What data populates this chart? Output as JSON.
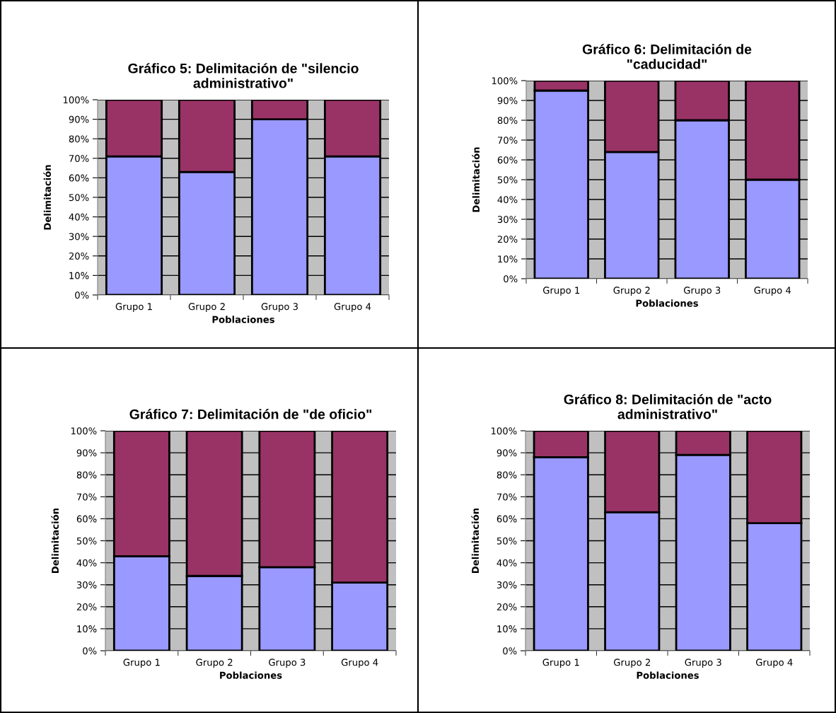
{
  "chart_data": [
    {
      "type": "bar",
      "stacked": true,
      "title": "Gráfico 5: Delimitación de \"silencio\nadministrativo\"",
      "xlabel": "Poblaciones",
      "ylabel": "Delimitación",
      "categories": [
        "Grupo 1",
        "Grupo 2",
        "Grupo 3",
        "Grupo 4"
      ],
      "ylim": [
        0,
        100
      ],
      "yticks": [
        {
          "value": 0,
          "label": "0%"
        },
        {
          "value": 10,
          "label": "10%"
        },
        {
          "value": 20,
          "label": "20%"
        },
        {
          "value": 30,
          "label": "30%"
        },
        {
          "value": 40,
          "label": "40%"
        },
        {
          "value": 50,
          "label": "50%"
        },
        {
          "value": 60,
          "label": "60%"
        },
        {
          "value": 70,
          "label": "70%"
        },
        {
          "value": 80,
          "label": "80%"
        },
        {
          "value": 90,
          "label": "90%"
        },
        {
          "value": 100,
          "label": "100%"
        }
      ],
      "grid": "y",
      "series": [
        {
          "color": "#9999ff",
          "values": [
            71,
            63,
            90,
            71
          ]
        },
        {
          "color": "#993366",
          "values": [
            29,
            37,
            10,
            29
          ]
        }
      ]
    },
    {
      "type": "bar",
      "stacked": true,
      "title": "Gráfico 6: Delimitación de\n\"caducidad\"",
      "xlabel": "Poblaciones",
      "ylabel": "Delimitación",
      "categories": [
        "Grupo 1",
        "Grupo 2",
        "Grupo 3",
        "Grupo 4"
      ],
      "ylim": [
        0,
        100
      ],
      "yticks": [
        {
          "value": 0,
          "label": "0%"
        },
        {
          "value": 10,
          "label": "10%"
        },
        {
          "value": 20,
          "label": "20%"
        },
        {
          "value": 30,
          "label": "30%"
        },
        {
          "value": 40,
          "label": "40%"
        },
        {
          "value": 50,
          "label": "50%"
        },
        {
          "value": 60,
          "label": "60%"
        },
        {
          "value": 70,
          "label": "70%"
        },
        {
          "value": 80,
          "label": "80%"
        },
        {
          "value": 90,
          "label": "90%"
        },
        {
          "value": 100,
          "label": "100%"
        }
      ],
      "grid": "y",
      "series": [
        {
          "color": "#9999ff",
          "values": [
            95,
            64,
            80,
            50
          ]
        },
        {
          "color": "#993366",
          "values": [
            5,
            36,
            20,
            50
          ]
        }
      ]
    },
    {
      "type": "bar",
      "stacked": true,
      "title": "Gráfico 7: Delimitación de \"de oficio\"",
      "xlabel": "Poblaciones",
      "ylabel": "Delimitación",
      "categories": [
        "Grupo 1",
        "Grupo 2",
        "Grupo 3",
        "Grupo 4"
      ],
      "ylim": [
        0,
        100
      ],
      "yticks": [
        {
          "value": 0,
          "label": "0%"
        },
        {
          "value": 10,
          "label": "10%"
        },
        {
          "value": 20,
          "label": "20%"
        },
        {
          "value": 30,
          "label": "30%"
        },
        {
          "value": 40,
          "label": "40%"
        },
        {
          "value": 50,
          "label": "50%"
        },
        {
          "value": 60,
          "label": "60%"
        },
        {
          "value": 70,
          "label": "70%"
        },
        {
          "value": 80,
          "label": "80%"
        },
        {
          "value": 90,
          "label": "90%"
        },
        {
          "value": 100,
          "label": "100%"
        }
      ],
      "grid": "y",
      "series": [
        {
          "color": "#9999ff",
          "values": [
            43,
            34,
            38,
            31
          ]
        },
        {
          "color": "#993366",
          "values": [
            57,
            66,
            62,
            69
          ]
        }
      ]
    },
    {
      "type": "bar",
      "stacked": true,
      "title": "Gráfico 8: Delimitación de \"acto\nadministrativo\"",
      "xlabel": "Poblaciones",
      "ylabel": "Delimitación",
      "categories": [
        "Grupo 1",
        "Grupo 2",
        "Grupo 3",
        "Grupo 4"
      ],
      "ylim": [
        0,
        100
      ],
      "yticks": [
        {
          "value": 0,
          "label": "0%"
        },
        {
          "value": 10,
          "label": "10%"
        },
        {
          "value": 20,
          "label": "20%"
        },
        {
          "value": 30,
          "label": "30%"
        },
        {
          "value": 40,
          "label": "40%"
        },
        {
          "value": 50,
          "label": "50%"
        },
        {
          "value": 60,
          "label": "60%"
        },
        {
          "value": 70,
          "label": "70%"
        },
        {
          "value": 80,
          "label": "80%"
        },
        {
          "value": 90,
          "label": "90%"
        },
        {
          "value": 100,
          "label": "100%"
        }
      ],
      "grid": "y",
      "series": [
        {
          "color": "#9999ff",
          "values": [
            88,
            63,
            89,
            58
          ]
        },
        {
          "color": "#993366",
          "values": [
            12,
            37,
            11,
            42
          ]
        }
      ]
    }
  ]
}
